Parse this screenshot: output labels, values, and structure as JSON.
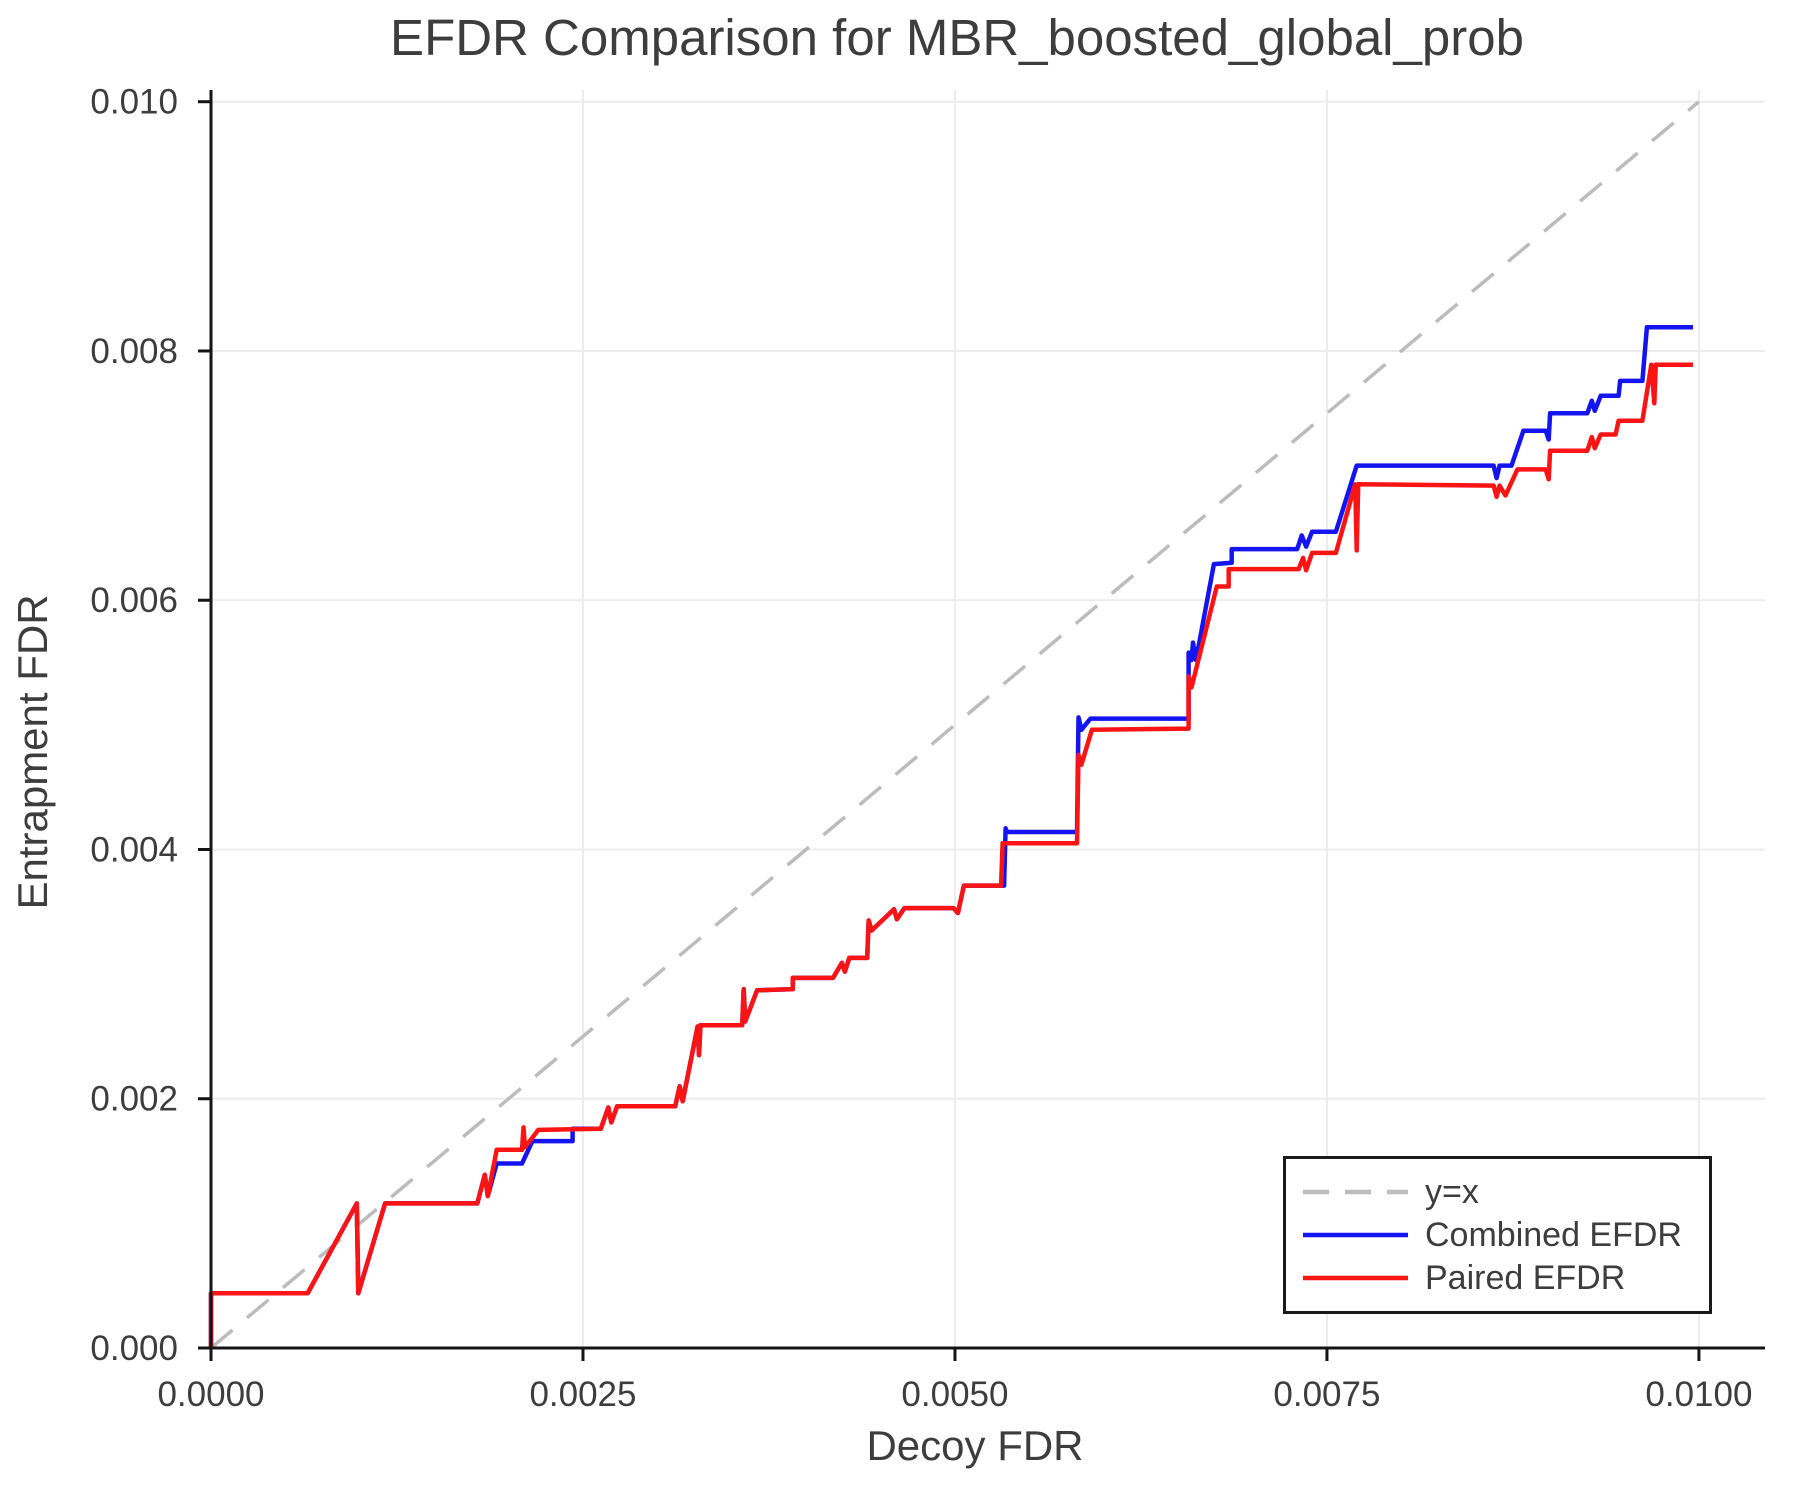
{
  "figure": {
    "background": "#ffffff",
    "text_color": "#3d3d3d",
    "spine_color": "#141414",
    "grid_color": "#ececec"
  },
  "chart_data": {
    "type": "line",
    "title": "EFDR Comparison for MBR_boosted_global_prob",
    "xlabel": "Decoy FDR",
    "ylabel": "Entrapment FDR",
    "xlim": [
      0,
      0.010444
    ],
    "ylim": [
      0,
      0.010094
    ],
    "grid": true,
    "x_ticks": [
      0.0,
      0.0025,
      0.005,
      0.0075,
      0.01
    ],
    "x_tick_labels": [
      "0.0000",
      "0.0025",
      "0.0050",
      "0.0075",
      "0.0100"
    ],
    "y_ticks": [
      0.0,
      0.002,
      0.004,
      0.006,
      0.008,
      0.01
    ],
    "y_tick_labels": [
      "0.000",
      "0.002",
      "0.004",
      "0.006",
      "0.008",
      "0.010"
    ],
    "legend": {
      "position": "lower right",
      "entries": [
        {
          "label": "y=x",
          "color": "#bcbcbc",
          "dashed": true
        },
        {
          "label": "Combined EFDR",
          "color": "#1414f0",
          "dashed": false
        },
        {
          "label": "Paired EFDR",
          "color": "#fa1414",
          "dashed": false
        }
      ]
    },
    "series": [
      {
        "name": "y=x",
        "color": "#bcbcbc",
        "dashed": true,
        "width": 3.5,
        "points": [
          [
            0,
            0
          ],
          [
            0.01,
            0.01
          ]
        ]
      },
      {
        "name": "Combined EFDR",
        "color": "#1414f0",
        "dashed": false,
        "width": 4.5,
        "points": [
          [
            0,
            0
          ],
          [
            0,
            0.00044
          ],
          [
            0.00065,
            0.00044
          ],
          [
            0.00098,
            0.00116
          ],
          [
            0.00099,
            0.00044
          ],
          [
            0.00117,
            0.00116
          ],
          [
            0.00179,
            0.00116
          ],
          [
            0.00184,
            0.00139
          ],
          [
            0.00186,
            0.00122
          ],
          [
            0.00192,
            0.00148
          ],
          [
            0.00209,
            0.00148
          ],
          [
            0.00216,
            0.00166
          ],
          [
            0.00243,
            0.00166
          ],
          [
            0.00243,
            0.00176
          ],
          [
            0.00262,
            0.00176
          ],
          [
            0.00267,
            0.00193
          ],
          [
            0.00269,
            0.00181
          ],
          [
            0.00273,
            0.00194
          ],
          [
            0.00312,
            0.00194
          ],
          [
            0.00315,
            0.0021
          ],
          [
            0.00317,
            0.00198
          ],
          [
            0.00327,
            0.00258
          ],
          [
            0.00328,
            0.00235
          ],
          [
            0.00329,
            0.00259
          ],
          [
            0.00357,
            0.00259
          ],
          [
            0.00358,
            0.00288
          ],
          [
            0.00359,
            0.00262
          ],
          [
            0.00367,
            0.00287
          ],
          [
            0.00391,
            0.00288
          ],
          [
            0.00391,
            0.00297
          ],
          [
            0.00418,
            0.00297
          ],
          [
            0.00424,
            0.00309
          ],
          [
            0.00426,
            0.00302
          ],
          [
            0.00429,
            0.00313
          ],
          [
            0.00441,
            0.00313
          ],
          [
            0.00442,
            0.00343
          ],
          [
            0.00444,
            0.00335
          ],
          [
            0.00459,
            0.00352
          ],
          [
            0.00461,
            0.00344
          ],
          [
            0.00466,
            0.00353
          ],
          [
            0.00499,
            0.00353
          ],
          [
            0.00502,
            0.00349
          ],
          [
            0.00506,
            0.00371
          ],
          [
            0.00533,
            0.00371
          ],
          [
            0.00534,
            0.00417
          ],
          [
            0.00535,
            0.00414
          ],
          [
            0.00582,
            0.00414
          ],
          [
            0.00583,
            0.00506
          ],
          [
            0.00585,
            0.00496
          ],
          [
            0.00591,
            0.00505
          ],
          [
            0.00657,
            0.00505
          ],
          [
            0.00657,
            0.00558
          ],
          [
            0.00659,
            0.00552
          ],
          [
            0.0066,
            0.00566
          ],
          [
            0.00662,
            0.00552
          ],
          [
            0.00674,
            0.00629
          ],
          [
            0.00686,
            0.0063
          ],
          [
            0.00686,
            0.00641
          ],
          [
            0.0073,
            0.00641
          ],
          [
            0.00733,
            0.00652
          ],
          [
            0.00736,
            0.00643
          ],
          [
            0.0074,
            0.00655
          ],
          [
            0.00756,
            0.00655
          ],
          [
            0.0077,
            0.00708
          ],
          [
            0.00862,
            0.00708
          ],
          [
            0.00864,
            0.00698
          ],
          [
            0.00866,
            0.00708
          ],
          [
            0.00874,
            0.00708
          ],
          [
            0.00882,
            0.00736
          ],
          [
            0.00897,
            0.00736
          ],
          [
            0.00899,
            0.00729
          ],
          [
            0.009,
            0.0075
          ],
          [
            0.00925,
            0.0075
          ],
          [
            0.00928,
            0.0076
          ],
          [
            0.0093,
            0.00752
          ],
          [
            0.00934,
            0.00764
          ],
          [
            0.00946,
            0.00764
          ],
          [
            0.00947,
            0.00776
          ],
          [
            0.00962,
            0.00776
          ],
          [
            0.00965,
            0.00819
          ],
          [
            0.00996,
            0.00819
          ]
        ]
      },
      {
        "name": "Paired EFDR",
        "color": "#fa1414",
        "dashed": false,
        "width": 4.5,
        "points": [
          [
            0,
            0
          ],
          [
            0,
            0.00044
          ],
          [
            0.00065,
            0.00044
          ],
          [
            0.00098,
            0.00116
          ],
          [
            0.00099,
            0.00044
          ],
          [
            0.00117,
            0.00116
          ],
          [
            0.00179,
            0.00116
          ],
          [
            0.00184,
            0.00139
          ],
          [
            0.00186,
            0.00122
          ],
          [
            0.00192,
            0.00159
          ],
          [
            0.00209,
            0.00159
          ],
          [
            0.0021,
            0.00177
          ],
          [
            0.00211,
            0.00161
          ],
          [
            0.0022,
            0.00175
          ],
          [
            0.00262,
            0.00176
          ],
          [
            0.00267,
            0.00193
          ],
          [
            0.00269,
            0.00181
          ],
          [
            0.00273,
            0.00194
          ],
          [
            0.00312,
            0.00194
          ],
          [
            0.00315,
            0.0021
          ],
          [
            0.00317,
            0.00198
          ],
          [
            0.00327,
            0.00258
          ],
          [
            0.00328,
            0.00235
          ],
          [
            0.00329,
            0.00259
          ],
          [
            0.00357,
            0.00259
          ],
          [
            0.00358,
            0.00288
          ],
          [
            0.00359,
            0.00262
          ],
          [
            0.00367,
            0.00287
          ],
          [
            0.00391,
            0.00288
          ],
          [
            0.00391,
            0.00297
          ],
          [
            0.00418,
            0.00297
          ],
          [
            0.00424,
            0.00309
          ],
          [
            0.00426,
            0.00302
          ],
          [
            0.00429,
            0.00313
          ],
          [
            0.00441,
            0.00313
          ],
          [
            0.00442,
            0.00343
          ],
          [
            0.00444,
            0.00335
          ],
          [
            0.00459,
            0.00352
          ],
          [
            0.00461,
            0.00344
          ],
          [
            0.00466,
            0.00353
          ],
          [
            0.00499,
            0.00353
          ],
          [
            0.00502,
            0.00349
          ],
          [
            0.00506,
            0.00371
          ],
          [
            0.00531,
            0.00371
          ],
          [
            0.00532,
            0.00405
          ],
          [
            0.00582,
            0.00405
          ],
          [
            0.00583,
            0.00476
          ],
          [
            0.00585,
            0.00468
          ],
          [
            0.00592,
            0.00496
          ],
          [
            0.00657,
            0.00497
          ],
          [
            0.00657,
            0.00539
          ],
          [
            0.00659,
            0.0053
          ],
          [
            0.00676,
            0.00611
          ],
          [
            0.00684,
            0.00611
          ],
          [
            0.00684,
            0.00625
          ],
          [
            0.00731,
            0.00625
          ],
          [
            0.00734,
            0.00634
          ],
          [
            0.00736,
            0.00624
          ],
          [
            0.0074,
            0.00638
          ],
          [
            0.00756,
            0.00638
          ],
          [
            0.00769,
            0.00693
          ],
          [
            0.0077,
            0.0064
          ],
          [
            0.00771,
            0.00693
          ],
          [
            0.00862,
            0.00692
          ],
          [
            0.00864,
            0.00683
          ],
          [
            0.00866,
            0.00692
          ],
          [
            0.0087,
            0.00684
          ],
          [
            0.00878,
            0.00705
          ],
          [
            0.00897,
            0.00705
          ],
          [
            0.00899,
            0.00697
          ],
          [
            0.009,
            0.0072
          ],
          [
            0.00925,
            0.0072
          ],
          [
            0.00928,
            0.00731
          ],
          [
            0.0093,
            0.00722
          ],
          [
            0.00934,
            0.00733
          ],
          [
            0.00944,
            0.00733
          ],
          [
            0.00946,
            0.00744
          ],
          [
            0.00962,
            0.00744
          ],
          [
            0.00968,
            0.00789
          ],
          [
            0.0097,
            0.00758
          ],
          [
            0.00971,
            0.00789
          ],
          [
            0.00996,
            0.00789
          ]
        ]
      }
    ]
  }
}
